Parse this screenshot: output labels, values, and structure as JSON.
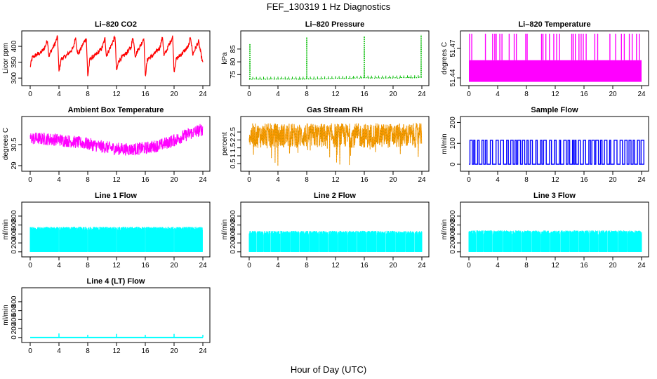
{
  "figure": {
    "title": "FEF_130319  1 Hz Diagnostics",
    "xlabel": "Hour of Day (UTC)"
  },
  "chart_data": [
    {
      "type": "line",
      "title": "Li–820 CO2",
      "ylabel": "Licor ppm",
      "xlim": [
        0,
        24
      ],
      "ylim": [
        285,
        440
      ],
      "xticks": [
        "0",
        "4",
        "8",
        "12",
        "16",
        "20",
        "24"
      ],
      "yticks": [
        300,
        350,
        400
      ],
      "color": "#ff0000",
      "pattern": "sawtooth",
      "series": [
        {
          "x": [
            0,
            0.3,
            1,
            1.5,
            2,
            2.4,
            2.6,
            3,
            3.4,
            3.8,
            4,
            4.3,
            5,
            5.6,
            6,
            6.3,
            6.6,
            7,
            7.4,
            7.8,
            8,
            8.3,
            9,
            9.6,
            10,
            10.4,
            10.6,
            11,
            11.4,
            11.8,
            12,
            12.3,
            13,
            13.6,
            14,
            14.3,
            14.6,
            15,
            15.4,
            15.8,
            16,
            16.3,
            17,
            17.6,
            18,
            18.4,
            18.6,
            19,
            19.4,
            19.8,
            20,
            20.3,
            21,
            21.6,
            22,
            22.3,
            22.6,
            23,
            23.4,
            24
          ],
          "y": [
            335,
            365,
            375,
            380,
            395,
            420,
            370,
            390,
            405,
            430,
            320,
            360,
            370,
            385,
            395,
            430,
            375,
            390,
            410,
            425,
            305,
            360,
            370,
            385,
            395,
            425,
            370,
            390,
            410,
            430,
            320,
            355,
            370,
            385,
            395,
            430,
            370,
            390,
            405,
            428,
            305,
            360,
            370,
            385,
            395,
            430,
            370,
            390,
            410,
            430,
            320,
            360,
            375,
            390,
            400,
            430,
            375,
            395,
            415,
            345
          ]
        }
      ]
    },
    {
      "type": "line",
      "title": "Li–820 Pressure",
      "ylabel": "kPa",
      "xlim": [
        0,
        24
      ],
      "ylim": [
        71.8,
        91
      ],
      "xticks": [
        "0",
        "4",
        "8",
        "12",
        "16",
        "20",
        "24"
      ],
      "yticks": [
        75,
        80,
        85
      ],
      "color": "#00bb00",
      "pattern": "baseline_spikes",
      "series": [
        {
          "x": [
            0,
            4,
            8,
            12,
            16,
            20,
            24
          ],
          "y": [
            73.2,
            73.3,
            73.3,
            73.5,
            73.7,
            73.7,
            73.9
          ]
        }
      ],
      "spikes": [
        {
          "x": 0.1,
          "y": 87
        },
        {
          "x": 8.0,
          "y": 89.5
        },
        {
          "x": 16.0,
          "y": 90
        },
        {
          "x": 23.9,
          "y": 90.5
        }
      ]
    },
    {
      "type": "line",
      "title": "Li–820 Temperature",
      "ylabel": "degrees C",
      "xlim": [
        0,
        24
      ],
      "ylim": [
        51.435,
        51.485
      ],
      "xticks": [
        "0",
        "4",
        "8",
        "12",
        "16",
        "20",
        "24"
      ],
      "yticks": [
        51.44,
        51.47
      ],
      "color": "#ff00ff",
      "pattern": "band_spikes",
      "band": [
        51.436,
        51.458
      ],
      "spikes_top": 51.485
    },
    {
      "type": "line",
      "title": "Ambient Box Temperature",
      "ylabel": "degrees C",
      "xlim": [
        0,
        24
      ],
      "ylim": [
        28.8,
        32.3
      ],
      "xticks": [
        "0",
        "4",
        "8",
        "12",
        "16",
        "20",
        "24"
      ],
      "yticks": [
        29.0,
        30.5
      ],
      "color": "#ff00ff",
      "pattern": "noisy_band",
      "series": [
        {
          "x": [
            0,
            2,
            4,
            6,
            8,
            10,
            12,
            14,
            16,
            18,
            20,
            22,
            24
          ],
          "y": [
            30.95,
            30.9,
            30.85,
            30.7,
            30.55,
            30.35,
            30.2,
            30.15,
            30.25,
            30.45,
            30.8,
            31.25,
            31.6
          ]
        }
      ],
      "noise": 0.45
    },
    {
      "type": "line",
      "title": "Gas Stream RH",
      "ylabel": "percent",
      "xlim": [
        0,
        24
      ],
      "ylim": [
        0.2,
        3.3
      ],
      "xticks": [
        "0",
        "4",
        "8",
        "12",
        "16",
        "20",
        "24"
      ],
      "yticks": [
        0.5,
        1.0,
        1.5,
        2.0,
        2.5
      ],
      "color": "#ff9900",
      "color2": "#888800",
      "pattern": "dense_band_dips",
      "band": [
        1.5,
        3.05
      ],
      "dip_min": 0.3
    },
    {
      "type": "line",
      "title": "Sample Flow",
      "ylabel": "ml/min",
      "xlim": [
        0,
        24
      ],
      "ylim": [
        -20,
        215
      ],
      "xticks": [
        "0",
        "4",
        "8",
        "12",
        "16",
        "20",
        "24"
      ],
      "yticks": [
        0,
        100,
        200
      ],
      "color": "#0000ff",
      "pattern": "square_pulses",
      "low": 0,
      "high": 115
    },
    {
      "type": "line",
      "title": "Line 1 Flow",
      "ylabel": "ml/min",
      "xlim": [
        0,
        24
      ],
      "ylim": [
        -50,
        1050
      ],
      "xticks": [
        "0",
        "4",
        "8",
        "12",
        "16",
        "20",
        "24"
      ],
      "yticks": [
        0,
        200,
        400,
        600,
        800
      ],
      "color": "#00ffff",
      "pattern": "flow_band",
      "band": [
        0,
        560
      ],
      "gaps": [
        4,
        8,
        12,
        16,
        20,
        24
      ]
    },
    {
      "type": "line",
      "title": "Line 2 Flow",
      "ylabel": "ml/min",
      "xlim": [
        0,
        24
      ],
      "ylim": [
        -50,
        1050
      ],
      "xticks": [
        "0",
        "4",
        "8",
        "12",
        "16",
        "20",
        "24"
      ],
      "yticks": [
        0,
        200,
        400,
        600,
        800
      ],
      "color": "#00ffff",
      "pattern": "flow_band",
      "band": [
        0,
        470
      ],
      "gaps": [
        1,
        2,
        3,
        4.3,
        5.7,
        7,
        8.3,
        9.7,
        11,
        12.3,
        13.7,
        15,
        16.3,
        17.7,
        19,
        20.3,
        21.7,
        23
      ]
    },
    {
      "type": "line",
      "title": "Line 3 Flow",
      "ylabel": "ml/min",
      "xlim": [
        0,
        24
      ],
      "ylim": [
        -50,
        1050
      ],
      "xticks": [
        "0",
        "4",
        "8",
        "12",
        "16",
        "20",
        "24"
      ],
      "yticks": [
        0,
        200,
        400,
        600,
        800
      ],
      "color": "#00ffff",
      "pattern": "flow_band",
      "band": [
        0,
        480
      ],
      "gaps": [
        1,
        2,
        3.3,
        4.7,
        6,
        7.3,
        8.7,
        10,
        11.3,
        12.7,
        14,
        15.3,
        16.7,
        18,
        19.3,
        20.7,
        22
      ]
    },
    {
      "type": "line",
      "title": "Line 4 (LT) Flow",
      "ylabel": "ml/min",
      "xlim": [
        0,
        24
      ],
      "ylim": [
        -50,
        1050
      ],
      "xticks": [
        "0",
        "4",
        "8",
        "12",
        "16",
        "20",
        "24"
      ],
      "yticks": [
        0,
        200,
        400,
        600,
        800
      ],
      "color": "#00ffff",
      "pattern": "flat_spikes",
      "baseline": 0,
      "spikes": [
        {
          "x": 4,
          "y": 90
        },
        {
          "x": 8,
          "y": 60
        },
        {
          "x": 12,
          "y": 80
        },
        {
          "x": 16,
          "y": 60
        },
        {
          "x": 20,
          "y": 80
        },
        {
          "x": 24,
          "y": 60
        }
      ]
    }
  ]
}
